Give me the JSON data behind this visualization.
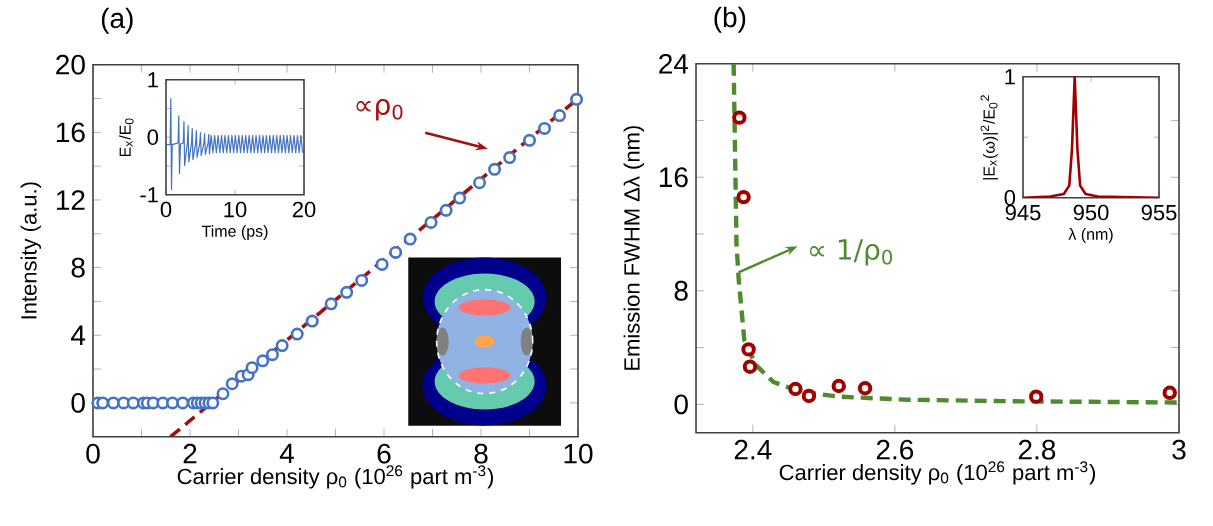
{
  "chart_data": [
    {
      "type": "scatter",
      "title": "(a)",
      "xlabel": "Carrier density  ρ$_{0}$ (10$^{26}$ part m$^{-3}$)",
      "ylabel": "Intensity (a.u.)",
      "xlim": [
        0,
        10
      ],
      "ylim": [
        -2,
        20
      ],
      "xticks": [
        0,
        {
          "value": 1,
          "label": null
        },
        2,
        {
          "value": 3,
          "label": null
        },
        4,
        {
          "value": 5,
          "label": null
        },
        6,
        {
          "value": 7,
          "label": null
        },
        8,
        {
          "value": 9,
          "label": null
        },
        10
      ],
      "yticks": [
        0,
        {
          "value": 2,
          "label": null
        },
        4,
        {
          "value": 6,
          "label": null
        },
        8,
        {
          "value": 10,
          "label": null
        },
        12,
        {
          "value": 14,
          "label": null
        },
        16,
        {
          "value": 18,
          "label": null
        },
        20
      ],
      "annotations": [
        "∝ρ$_{0}$"
      ],
      "series": [
        {
          "type": "scatter",
          "color": "#4472c4",
          "marker": "circle",
          "x": [
            0.1,
            0.2,
            0.42,
            0.63,
            0.83,
            1.04,
            1.12,
            1.24,
            1.44,
            1.64,
            1.85,
            2.07,
            2.15,
            2.23,
            2.31,
            2.39,
            2.47,
            2.68,
            2.87,
            3.06,
            3.2,
            3.28,
            3.5,
            3.7,
            3.9,
            4.21,
            4.52,
            4.91,
            5.23,
            5.54,
            5.96,
            6.24,
            6.54,
            6.97,
            7.28,
            7.56,
            7.97,
            8.28,
            8.59,
            9.0,
            9.31,
            9.62,
            9.97
          ],
          "values": [
            0,
            0,
            0,
            0,
            0,
            0,
            0,
            0,
            0,
            0,
            0,
            0,
            0,
            0,
            0,
            0,
            0,
            0.54,
            1.13,
            1.58,
            1.67,
            2.08,
            2.49,
            2.85,
            3.39,
            4.07,
            4.84,
            5.86,
            6.54,
            7.24,
            8.19,
            8.9,
            9.69,
            10.67,
            11.39,
            12.11,
            13.02,
            13.81,
            14.51,
            15.53,
            16.23,
            16.99,
            17.95
          ]
        },
        {
          "type": "line",
          "color": "#a50f0f",
          "line_style": "dashed",
          "marker": "none",
          "x": [
            1.6,
            10
          ],
          "values": [
            -2,
            18
          ]
        }
      ]
    },
    {
      "type": "line",
      "xlabel": "Time (ps)",
      "ylabel": "E$_{x}$/E$_{0}$",
      "xlim": [
        0,
        20
      ],
      "ylim": [
        -1,
        1
      ],
      "xticks": [
        0,
        10,
        20
      ],
      "yticks": [
        -1,
        {
          "value": -0.5,
          "label": null
        },
        0,
        {
          "value": 0.5,
          "label": null
        },
        1
      ],
      "series": [
        {
          "color": "#4472c4",
          "marker": "none",
          "line_style": "solid",
          "x": [
            0,
            0.6,
            0.7,
            0.8,
            0.9,
            1.75,
            1.85,
            1.95,
            2.1,
            2.5,
            2.6,
            2.7,
            3.1,
            3.2,
            3.3,
            3.7,
            3.8,
            3.9,
            4.3,
            4.4,
            4.5,
            4.9,
            5.0,
            5.1,
            5.5,
            5.6,
            5.7,
            6.1,
            6.2,
            6.3,
            6.55,
            6.8,
            7.05,
            7.3,
            7.55,
            7.8,
            8.05,
            8.3,
            8.55,
            8.8,
            9.05,
            9.3,
            9.55,
            9.8,
            10.05,
            10.3,
            10.55,
            10.8,
            11.05,
            11.3,
            11.55,
            11.8,
            12.05,
            12.3,
            12.55,
            12.8,
            13.05,
            13.3,
            13.55,
            13.8,
            14.05,
            14.3,
            14.55,
            14.8,
            15.05,
            15.3,
            15.55,
            15.8,
            16.05,
            16.3,
            16.55,
            16.8,
            17.05,
            17.3,
            17.55,
            17.8,
            18.05,
            18.3,
            18.55,
            18.8,
            19.05,
            19.3,
            19.55,
            19.8
          ],
          "values": [
            -0.13,
            -0.13,
            0.67,
            -0.91,
            -0.13,
            -0.1,
            0.37,
            -0.63,
            -0.12,
            -0.1,
            0.27,
            -0.49,
            -0.1,
            0.2,
            -0.43,
            -0.1,
            0.15,
            -0.39,
            -0.1,
            0.11,
            -0.35,
            -0.1,
            0.08,
            -0.32,
            -0.1,
            0.06,
            -0.3,
            -0.1,
            0.05,
            -0.29,
            0.03,
            -0.27,
            0.03,
            -0.27,
            0.03,
            -0.27,
            0.03,
            -0.27,
            0.03,
            -0.27,
            0.03,
            -0.27,
            0.03,
            -0.27,
            0.03,
            -0.27,
            0.03,
            -0.27,
            0.03,
            -0.27,
            0.03,
            -0.27,
            0.03,
            -0.27,
            0.03,
            -0.27,
            0.03,
            -0.27,
            0.03,
            -0.27,
            0.03,
            -0.27,
            0.03,
            -0.27,
            0.03,
            -0.27,
            0.03,
            -0.27,
            0.03,
            -0.27,
            0.03,
            -0.27,
            0.03,
            -0.27,
            0.03,
            -0.27,
            0.03,
            -0.27,
            0.03,
            -0.27,
            0.03,
            -0.27,
            0.03,
            -0.27
          ]
        }
      ]
    },
    {
      "type": "scatter",
      "title": "(b)",
      "xlabel": "Carrier density  ρ$_{0}$ (10$^{26}$ part m$^{-3}$)",
      "ylabel": "Emission FWHM Δλ (nm)",
      "xlim": [
        2.32,
        3
      ],
      "ylim": [
        -2,
        24
      ],
      "xticks": [
        2.4,
        2.6,
        2.8,
        3
      ],
      "yticks": [
        0,
        {
          "value": 4,
          "label": null
        },
        8,
        {
          "value": 12,
          "label": null
        },
        16,
        {
          "value": 20,
          "label": null
        },
        24
      ],
      "annotations": [
        {
          "text": "∝ 1/ρ$_{0}$",
          "x": 2.38,
          "y": 9.3
        }
      ],
      "series": [
        {
          "type": "scatter",
          "color": "#a00000",
          "marker": "circle",
          "x": [
            2.381,
            2.387,
            2.394,
            2.396,
            2.46,
            2.479,
            2.521,
            2.558,
            2.799,
            2.987
          ],
          "values": [
            20.2,
            14.6,
            3.87,
            2.65,
            1.08,
            0.59,
            1.29,
            1.13,
            0.54,
            0.81
          ]
        },
        {
          "type": "line",
          "color": "#4e8b2f",
          "line_style": "dashed",
          "marker": "none",
          "x": [
            2.373,
            2.377,
            2.38,
            2.388,
            2.404,
            2.429,
            2.467,
            2.521,
            2.618,
            2.781,
            2.998
          ],
          "values": [
            24,
            11.3,
            8.86,
            4.54,
            2.78,
            1.57,
            0.89,
            0.54,
            0.32,
            0.21,
            0.13
          ]
        }
      ]
    },
    {
      "type": "line",
      "xlabel": "λ (nm)",
      "ylabel": "|E$_{x}$(ω)|$^{2}$/E$_{0}$$^{2}$",
      "xlim": [
        945,
        955
      ],
      "ylim": [
        0,
        1
      ],
      "xticks": [
        945,
        950,
        955
      ],
      "yticks": [
        0,
        {
          "value": 0.5,
          "label": null
        },
        1
      ],
      "series": [
        {
          "color": "#a00000",
          "marker": "none",
          "line_style": "solid",
          "x": [
            945,
            947,
            948,
            948.4,
            948.6,
            948.8,
            949.0,
            949.2,
            949.6,
            950.5,
            955
          ],
          "values": [
            0,
            0.01,
            0.03,
            0.1,
            0.4,
            1.0,
            0.4,
            0.1,
            0.03,
            0.01,
            0
          ]
        }
      ]
    }
  ]
}
